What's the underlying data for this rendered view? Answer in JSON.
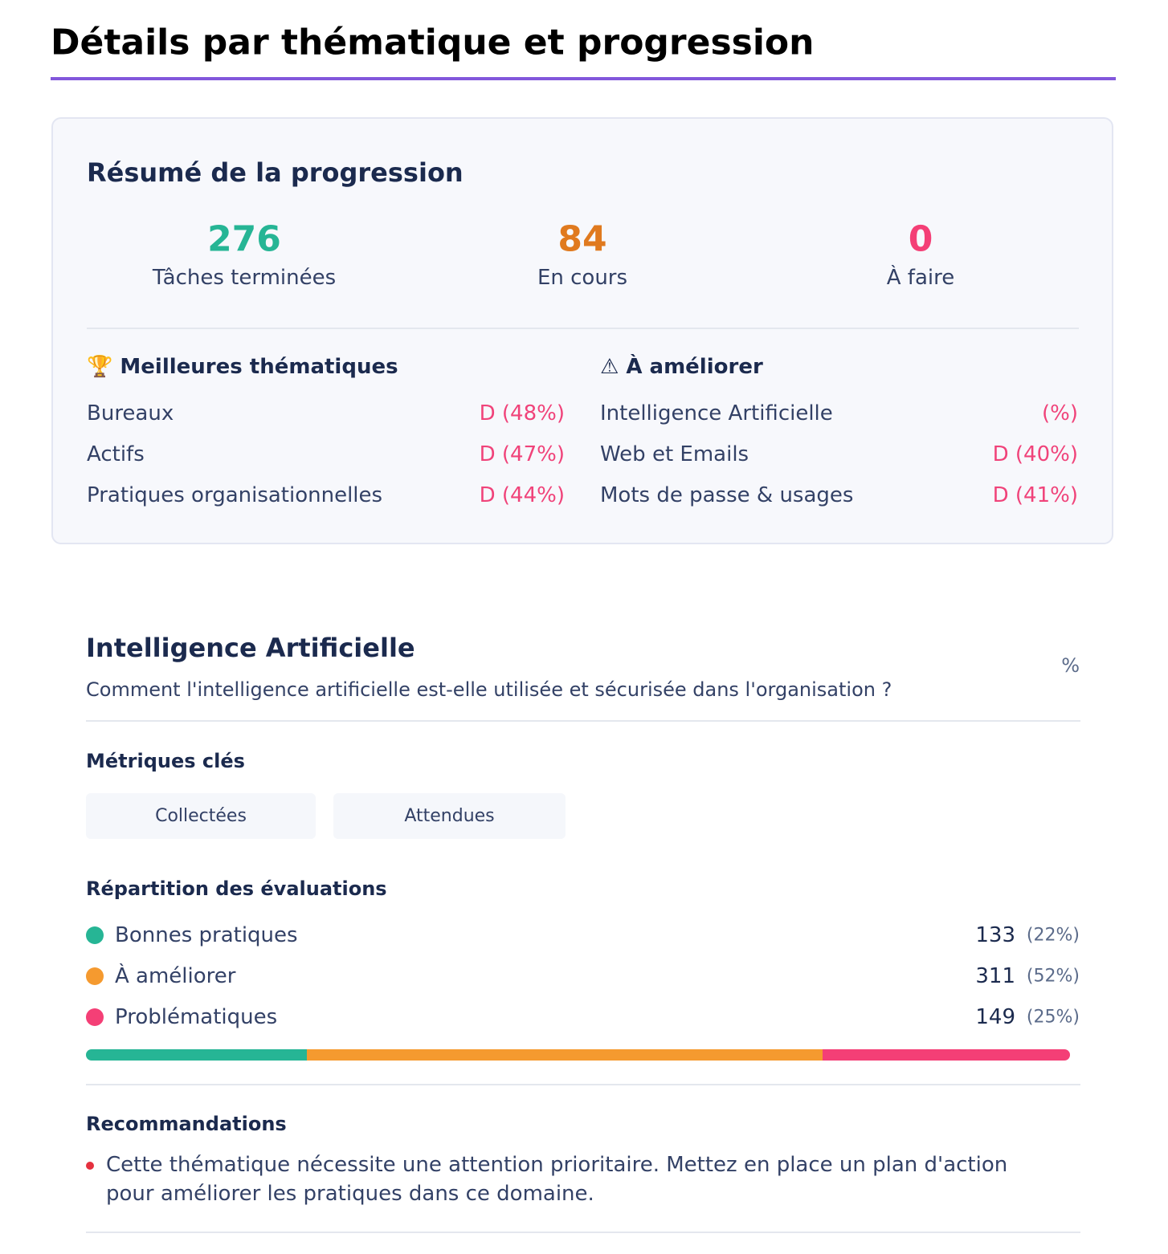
{
  "title": "Détails par thématique et progression",
  "summary": {
    "title": "Résumé de la progression",
    "stats": [
      {
        "value": 276,
        "label": "Tâches terminées",
        "color": "#26b595"
      },
      {
        "value": 84,
        "label": "En cours",
        "color": "#e07a1f"
      },
      {
        "value": 0,
        "label": "À faire",
        "color": "#f43f76"
      }
    ],
    "best": {
      "heading": "🏆 Meilleures thématiques",
      "rows": [
        [
          "Bureaux",
          "D (48%)"
        ],
        [
          "Actifs",
          "D (47%)"
        ],
        [
          "Pratiques organisationnelles",
          "D (44%)"
        ]
      ]
    },
    "improve": {
      "heading": "⚠ À améliorer",
      "rows": [
        [
          "Intelligence Artificielle",
          "(%)"
        ],
        [
          "Web et Emails",
          "D (40%)"
        ],
        [
          "Mots de passe & usages",
          "D (41%)"
        ]
      ]
    }
  },
  "section": {
    "title": "Intelligence Artificielle",
    "score": "%",
    "subtitle": "Comment l'intelligence artificielle est-elle utilisée et sécurisée dans l'organisation ?",
    "metrics": {
      "heading": "Métriques clés",
      "items": [
        "Collectées",
        "Attendues"
      ]
    },
    "distribution": {
      "heading": "Répartition des évaluations",
      "items": [
        {
          "name": "Bonnes pratiques",
          "count": 133,
          "percent": "(22%)",
          "color": "#26b595"
        },
        {
          "name": "À améliorer",
          "count": 311,
          "percent": "(52%)",
          "color": "#f59a2f"
        },
        {
          "name": "Problématiques",
          "count": 149,
          "percent": "(25%)",
          "color": "#f43f76"
        }
      ]
    },
    "recommendations": {
      "heading": "Recommandations",
      "items": [
        "Cette thématique nécessite une attention prioritaire. Mettez en place un plan d'action pour améliorer les pratiques dans ce domaine."
      ]
    }
  }
}
